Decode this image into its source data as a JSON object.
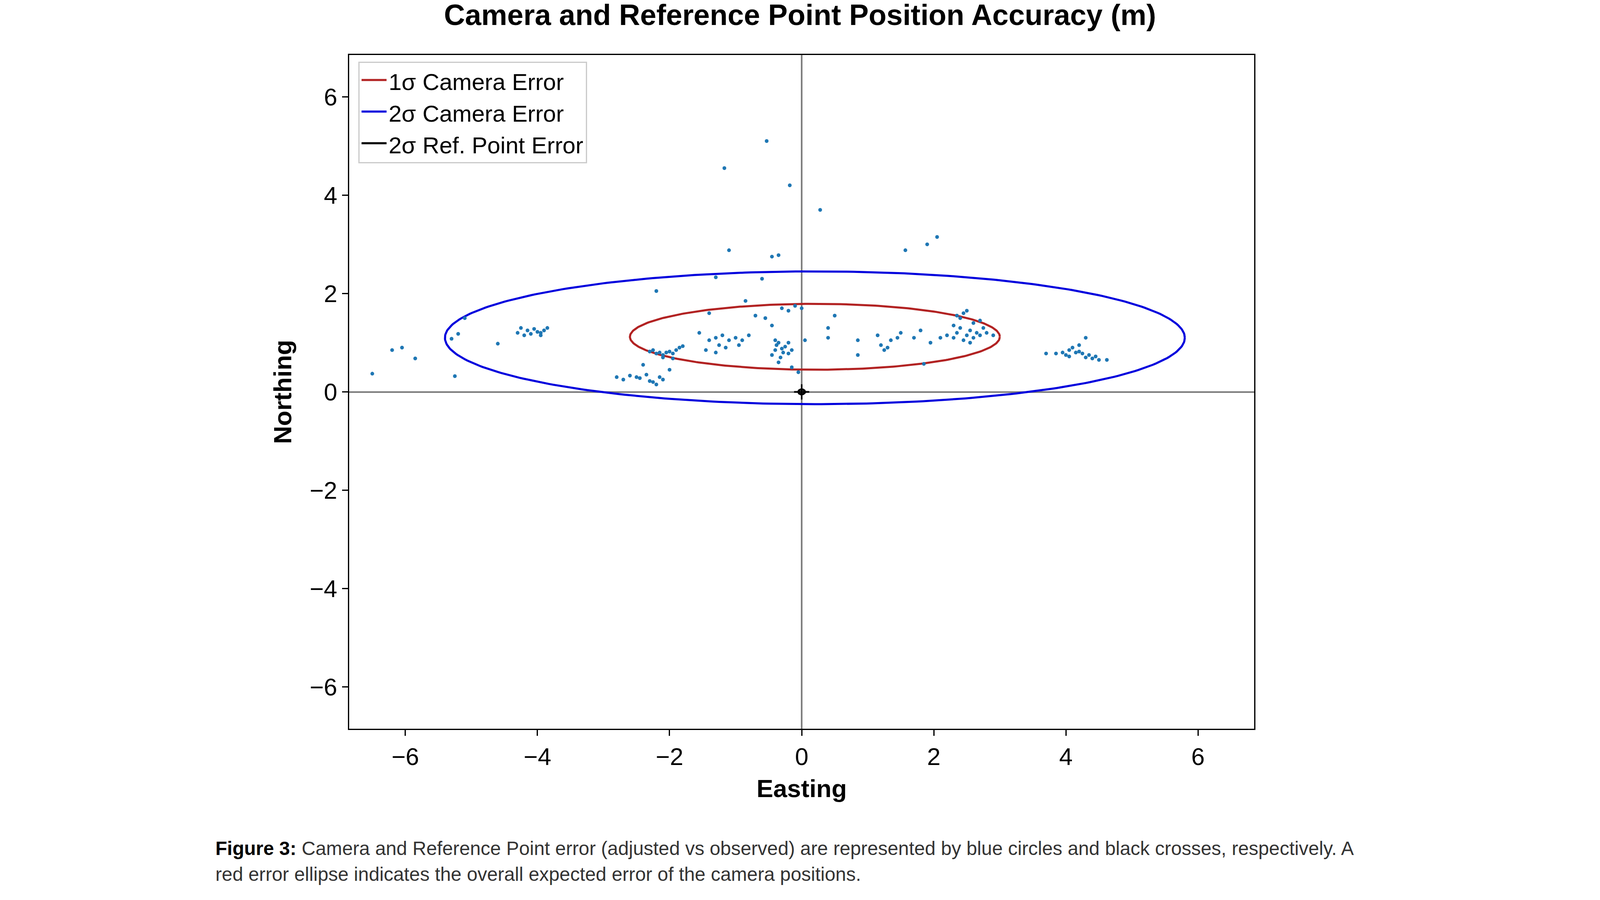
{
  "chart_data": {
    "type": "scatter",
    "title": "Camera and Reference Point Position Accuracy (m)",
    "x_label": "Easting",
    "y_label": "Northing",
    "xlim": [
      -6.85,
      6.85
    ],
    "ylim": [
      -6.85,
      6.85
    ],
    "xticks": [
      {
        "value": -6,
        "label": "−6"
      },
      {
        "value": -4,
        "label": "−4"
      },
      {
        "value": -2,
        "label": "−2"
      },
      0,
      2,
      4,
      6
    ],
    "yticks": [
      {
        "value": -6,
        "label": "−6"
      },
      {
        "value": -4,
        "label": "−4"
      },
      {
        "value": -2,
        "label": "−2"
      },
      0,
      2,
      4,
      6
    ],
    "grid": false,
    "legend": "upper left",
    "camera_points": {
      "color": "#1f77b4",
      "marker": "circle",
      "x": [
        -0.53,
        -1.17,
        -0.18,
        0.28,
        -1.1,
        -0.45,
        -0.35,
        1.57,
        1.9,
        2.05,
        -1.3,
        -0.6,
        -2.2,
        -6.5,
        -6.2,
        -6.05,
        -5.85,
        -5.3,
        -5.2,
        -5.1,
        -5.25,
        -4.6,
        -4.3,
        -4.25,
        -4.15,
        -4.1,
        -4.0,
        -3.95,
        -3.9,
        -3.85,
        -4.2,
        -4.05,
        -3.95,
        -2.8,
        -2.7,
        -2.6,
        -2.5,
        -2.45,
        -2.35,
        -2.3,
        -2.2,
        -2.15,
        -2.1,
        -2.0,
        -2.4,
        -2.25,
        -2.3,
        -2.25,
        -2.2,
        -2.15,
        -2.1,
        -2.05,
        -2.0,
        -1.95,
        -1.9,
        -1.85,
        -1.8,
        -2.1,
        -1.95,
        -1.55,
        -1.4,
        -1.3,
        -1.25,
        -1.2,
        -1.1,
        -1.0,
        -0.95,
        -0.9,
        -1.45,
        -1.3,
        -1.15,
        -0.8,
        -0.7,
        -0.55,
        -0.45,
        -1.4,
        -0.85,
        -0.45,
        -0.4,
        -0.38,
        -0.35,
        -0.32,
        -0.3,
        -0.28,
        -0.25,
        -0.2,
        -0.4,
        -0.35,
        -0.2,
        -0.15,
        -0.3,
        -0.2,
        -0.1,
        0.0,
        0.05,
        -0.05,
        -0.15,
        0.4,
        0.4,
        0.5,
        0.85,
        0.85,
        1.15,
        1.2,
        1.25,
        1.3,
        1.35,
        1.45,
        1.5,
        1.7,
        1.8,
        1.85,
        1.95,
        2.1,
        2.2,
        2.3,
        2.35,
        2.4,
        2.45,
        2.5,
        2.55,
        2.6,
        2.65,
        2.7,
        2.75,
        2.4,
        2.45,
        2.5,
        2.6,
        2.7,
        2.8,
        2.9,
        2.3,
        2.55,
        2.35,
        3.7,
        3.85,
        3.95,
        4.0,
        4.05,
        4.1,
        4.15,
        4.2,
        4.25,
        4.3,
        4.35,
        4.4,
        4.45,
        4.5,
        4.62,
        4.3,
        4.05,
        4.2
      ],
      "y": [
        5.1,
        4.55,
        4.2,
        3.7,
        2.88,
        2.75,
        2.78,
        2.88,
        3.0,
        3.15,
        2.33,
        2.3,
        2.05,
        0.37,
        0.85,
        0.9,
        0.68,
        1.08,
        1.18,
        1.5,
        0.32,
        0.98,
        1.2,
        1.3,
        1.25,
        1.18,
        1.22,
        1.15,
        1.25,
        1.3,
        1.15,
        1.28,
        1.2,
        0.3,
        0.25,
        0.33,
        0.3,
        0.28,
        0.35,
        0.22,
        0.15,
        0.3,
        0.25,
        0.45,
        0.55,
        0.2,
        0.82,
        0.85,
        0.78,
        0.8,
        0.75,
        0.8,
        0.82,
        0.78,
        0.85,
        0.9,
        0.93,
        0.7,
        0.68,
        1.2,
        1.05,
        1.1,
        0.95,
        1.15,
        1.05,
        1.1,
        0.95,
        1.05,
        0.85,
        0.8,
        0.9,
        1.15,
        1.55,
        1.5,
        1.35,
        1.6,
        1.85,
        0.75,
        0.85,
        0.95,
        1.0,
        0.7,
        0.88,
        0.8,
        0.92,
        1.0,
        1.05,
        0.6,
        0.78,
        0.85,
        1.7,
        1.65,
        1.75,
        1.7,
        1.05,
        0.4,
        0.5,
        1.1,
        1.3,
        1.55,
        0.75,
        1.05,
        1.15,
        0.95,
        0.85,
        0.9,
        1.05,
        1.1,
        1.2,
        1.1,
        1.25,
        0.57,
        1.0,
        1.1,
        1.15,
        1.1,
        1.2,
        1.3,
        1.05,
        1.15,
        1.25,
        1.1,
        1.2,
        1.15,
        1.3,
        1.5,
        1.6,
        1.65,
        1.4,
        1.45,
        1.2,
        1.15,
        1.35,
        1.0,
        1.55,
        0.78,
        0.78,
        0.8,
        0.75,
        0.85,
        0.9,
        0.8,
        0.82,
        0.78,
        0.7,
        0.75,
        0.68,
        0.72,
        0.65,
        0.65,
        1.1,
        0.72,
        0.95
      ]
    },
    "reference_points": {
      "color": "#000000",
      "marker": "cross",
      "x": [
        0
      ],
      "y": [
        0
      ]
    },
    "ellipses": [
      {
        "name": "1σ Camera Error",
        "color": "#b22222",
        "center": [
          0.2,
          1.12
        ],
        "semi_axes": [
          2.8,
          0.67
        ]
      },
      {
        "name": "2σ Camera Error",
        "color": "#0000dd",
        "center": [
          0.2,
          1.1
        ],
        "semi_axes": [
          5.6,
          1.35
        ]
      },
      {
        "name": "2σ Ref. Point Error",
        "color": "#000000",
        "center": [
          0,
          0
        ],
        "semi_axes": [
          0.05,
          0.05
        ]
      }
    ]
  },
  "caption": {
    "label": "Figure 3:",
    "text": "Camera and Reference Point error (adjusted vs observed) are represented by blue circles and black crosses, respectively. A red error ellipse indicates the overall expected error of the camera positions."
  }
}
